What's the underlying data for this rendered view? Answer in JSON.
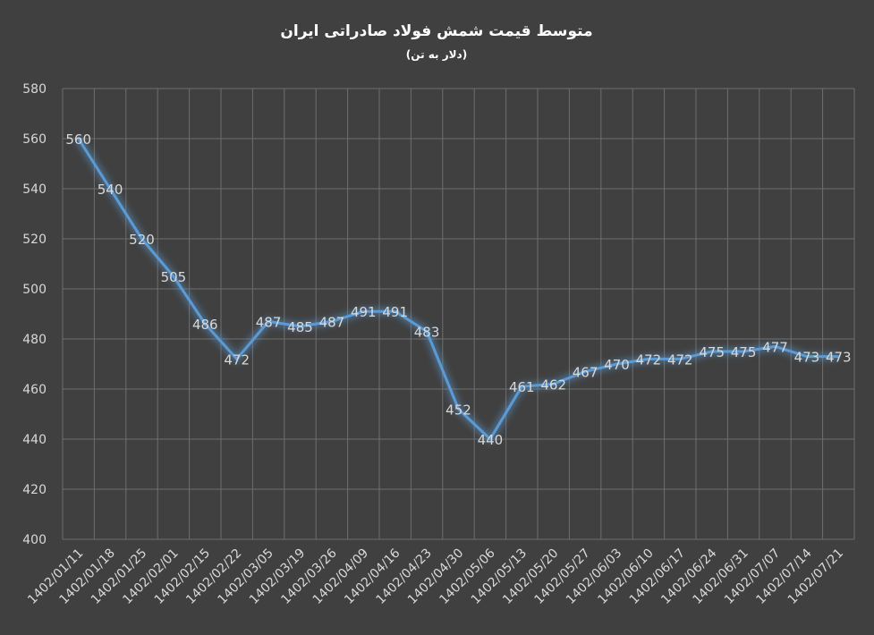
{
  "chart_data": {
    "type": "line",
    "title": "متوسط قیمت شمش فولاد صادراتی ایران",
    "subtitle": "(دلار به تن)",
    "categories": [
      "1402/01/11",
      "1402/01/18",
      "1402/01/25",
      "1402/02/01",
      "1402/02/15",
      "1402/02/22",
      "1402/03/05",
      "1402/03/19",
      "1402/03/26",
      "1402/04/09",
      "1402/04/16",
      "1402/04/23",
      "1402/04/30",
      "1402/05/06",
      "1402/05/13",
      "1402/05/20",
      "1402/05/27",
      "1402/06/03",
      "1402/06/10",
      "1402/06/17",
      "1402/06/24",
      "1402/06/31",
      "1402/07/07",
      "1402/07/14",
      "1402/07/21"
    ],
    "series": [
      {
        "values": [
          560,
          540,
          520,
          505,
          486,
          472,
          487,
          485,
          487,
          491,
          491,
          483,
          452,
          440,
          461,
          462,
          467,
          470,
          472,
          472,
          475,
          475,
          477,
          473,
          473
        ]
      }
    ],
    "ylim": [
      400,
      580
    ],
    "yticks": [
      400,
      420,
      440,
      460,
      480,
      500,
      520,
      540,
      560,
      580
    ],
    "grid": true,
    "data_labels": true,
    "legend": "none",
    "colors": {
      "background": "#404040",
      "line": "#5b9bd5",
      "glow": "#5b9bd5",
      "grid": "#6e6e6e",
      "text": "#d9d9d9",
      "title": "#ffffff"
    }
  }
}
